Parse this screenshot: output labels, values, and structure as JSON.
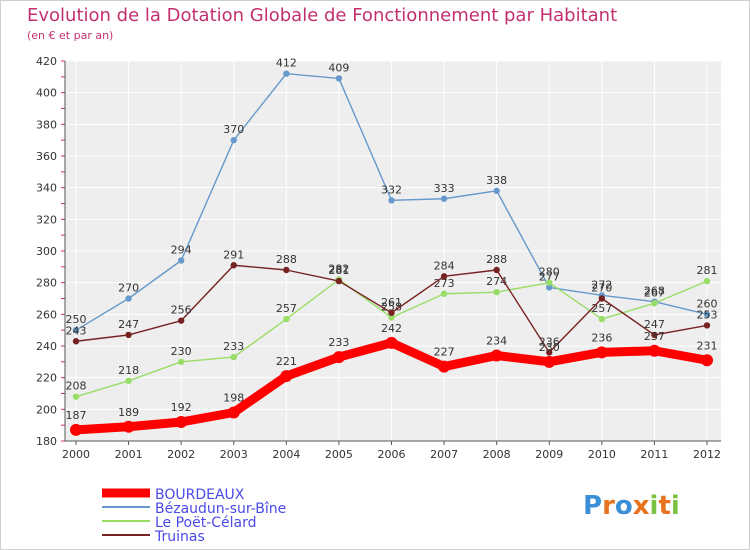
{
  "header": {
    "title": "Evolution de la Dotation Globale de Fonctionnement par Habitant",
    "subtitle": "(en € et par an)"
  },
  "logo": {
    "text": "Proxiti"
  },
  "chart_data": {
    "type": "line",
    "x": [
      "2000",
      "2001",
      "2002",
      "2003",
      "2004",
      "2005",
      "2006",
      "2007",
      "2008",
      "2009",
      "2010",
      "2011",
      "2012"
    ],
    "ylim": [
      180,
      420
    ],
    "yticks": [
      180,
      200,
      220,
      240,
      260,
      280,
      300,
      320,
      340,
      360,
      380,
      400,
      420
    ],
    "grid": true,
    "legend": "bottom-left",
    "series": [
      {
        "name": "BOURDEAUX",
        "color": "#ff0000",
        "values": [
          187,
          189,
          192,
          198,
          221,
          233,
          242,
          227,
          234,
          230,
          236,
          237,
          231
        ]
      },
      {
        "name": "Bézaudun-sur-Bîne",
        "color": "#6699cc",
        "values": [
          250,
          270,
          294,
          370,
          412,
          409,
          332,
          333,
          338,
          277,
          272,
          268,
          260
        ]
      },
      {
        "name": "Le Poët-Célard",
        "color": "#99dd66",
        "values": [
          208,
          218,
          230,
          233,
          257,
          282,
          258,
          273,
          274,
          280,
          257,
          267,
          281
        ]
      },
      {
        "name": "Truinas",
        "color": "#772222",
        "values": [
          243,
          247,
          256,
          291,
          288,
          281,
          261,
          284,
          288,
          236,
          270,
          247,
          253
        ]
      }
    ]
  }
}
